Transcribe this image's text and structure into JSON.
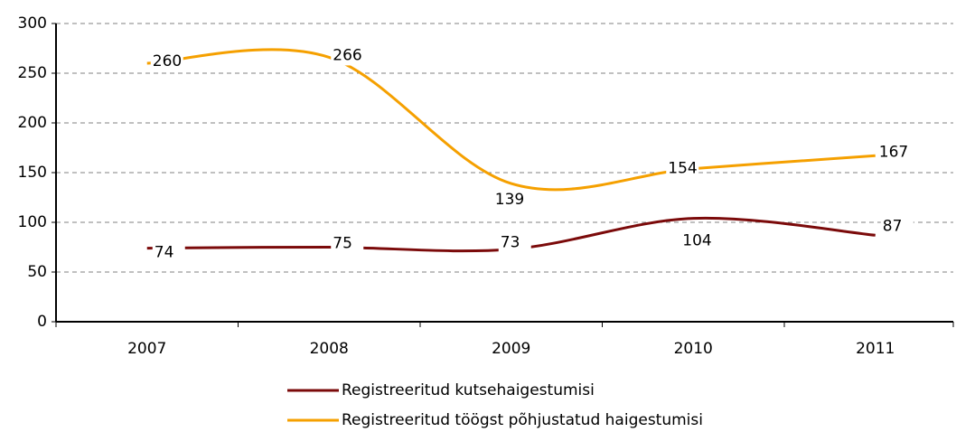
{
  "chart_data": {
    "type": "line",
    "categories": [
      "2007",
      "2008",
      "2009",
      "2010",
      "2011"
    ],
    "series": [
      {
        "name": "Registreeritud kutsehaigestumisi",
        "color": "#7b0a0a",
        "values": [
          74,
          75,
          73,
          104,
          87
        ]
      },
      {
        "name": "Registreeritud töögst põhjustatud haigestumisi",
        "color": "#f5a000",
        "values": [
          260,
          266,
          139,
          154,
          167
        ]
      }
    ],
    "ylim": [
      0,
      300
    ],
    "yticks": [
      0,
      50,
      100,
      150,
      200,
      250,
      300
    ],
    "grid": true,
    "legend": "bottom"
  }
}
